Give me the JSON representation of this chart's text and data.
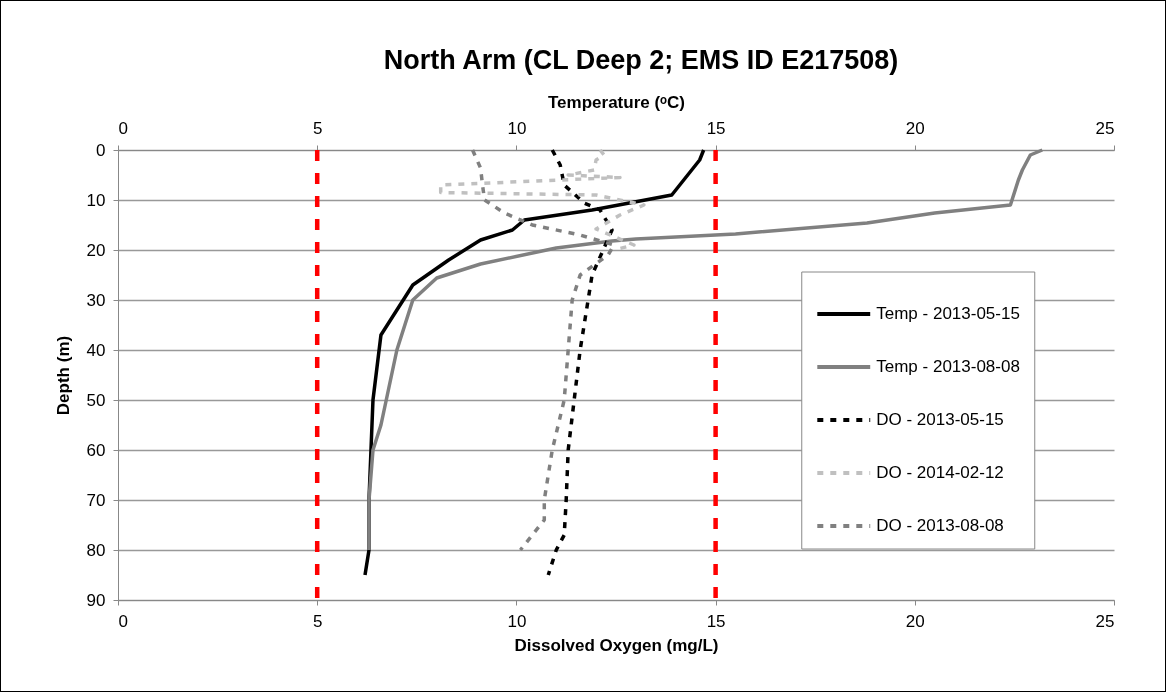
{
  "chart_data": {
    "type": "line",
    "title": "North Arm (CL Deep 2; EMS ID E217508)",
    "xlabel": "Dissolved Oxygen (mg/L)",
    "x2label": "Temperature (ᵒC)",
    "ylabel": "Depth (m)",
    "xlim": [
      0,
      25
    ],
    "xticks": [
      0,
      5,
      10,
      15,
      20,
      25
    ],
    "x2lim": [
      0,
      25
    ],
    "x2ticks": [
      0,
      5,
      10,
      15,
      20,
      25
    ],
    "ylim": [
      90,
      0
    ],
    "yticks": [
      0,
      10,
      20,
      30,
      40,
      50,
      60,
      70,
      80,
      90
    ],
    "grid": "y",
    "legend": "right",
    "series": [
      {
        "name": "Temp - 2013-05-15",
        "color": "#000000",
        "axis": "x2",
        "line_style": "solid",
        "x": [
          14.7,
          14.6,
          14.4,
          14.2,
          13.9,
          11.9,
          10.2,
          9.9,
          9.1,
          8.3,
          7.4,
          6.6,
          6.4,
          6.35,
          6.3,
          6.3,
          6.2
        ],
        "values": [
          0,
          2,
          4,
          6,
          9,
          12,
          14,
          16,
          18,
          22,
          27,
          37,
          50,
          60,
          70,
          80,
          85
        ]
      },
      {
        "name": "Temp - 2013-08-08",
        "color": "#808080",
        "axis": "x2",
        "line_style": "solid",
        "x": [
          23.2,
          22.9,
          22.7,
          22.6,
          22.4,
          20.5,
          18.8,
          15.5,
          13.0,
          12.4,
          11.0,
          9.1,
          8.0,
          7.4,
          7.0,
          6.6,
          6.4,
          6.3,
          6.3
        ],
        "values": [
          0,
          1,
          4,
          6,
          11,
          12.6,
          14.6,
          16.8,
          17.8,
          18.2,
          19.6,
          22.8,
          25.6,
          30,
          40,
          55,
          60,
          70,
          80
        ]
      },
      {
        "name": "DO - 2013-05-15",
        "color": "#000000",
        "line_style": "dashed",
        "x": [
          10.9,
          11.1,
          11.2,
          11.7,
          12.1,
          12.4,
          12.2,
          11.9,
          11.8,
          11.6,
          11.45,
          11.3,
          11.25,
          11.2,
          11.0,
          10.8
        ],
        "values": [
          0,
          3,
          7,
          10.6,
          12,
          16,
          19.6,
          25,
          30,
          40,
          50,
          60,
          70,
          77,
          80,
          85
        ]
      },
      {
        "name": "DO - 2014-02-12",
        "color": "#c0c0c0",
        "line_style": "dashed",
        "x": [
          12.1,
          12.2,
          12.0,
          11.95,
          11.3,
          12.6,
          8.1,
          8.1,
          12.0,
          13.2,
          12.6,
          12.0,
          12.95,
          12.45
        ],
        "values": [
          0,
          1,
          2,
          4,
          5,
          5.5,
          7,
          8.5,
          9,
          11,
          13,
          15.8,
          19,
          20
        ]
      },
      {
        "name": "DO - 2013-08-08",
        "color": "#808080",
        "line_style": "dashed",
        "x": [
          8.9,
          9.1,
          9.15,
          9.2,
          9.7,
          10.4,
          11.6,
          12.45,
          12.3,
          11.6,
          11.4,
          11.3,
          11.2,
          10.9,
          10.7,
          10.7,
          10.1
        ],
        "values": [
          0,
          3.6,
          7,
          10,
          12.6,
          15,
          17,
          19,
          21,
          25,
          30,
          40,
          50,
          60,
          70,
          74,
          80
        ]
      }
    ],
    "ref_lines": [
      {
        "axis": "x",
        "value": 5,
        "color": "#ff0000",
        "line_style": "dashed"
      },
      {
        "axis": "x",
        "value": 15,
        "color": "#ff0000",
        "line_style": "dashed"
      }
    ]
  }
}
